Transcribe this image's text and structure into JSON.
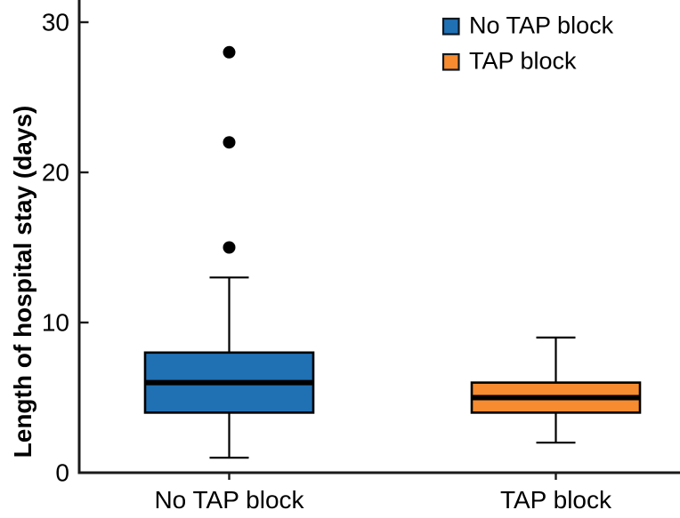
{
  "chart_data": {
    "type": "boxplot",
    "title": "",
    "xlabel": "",
    "ylabel": "Length of hospital stay (days)",
    "ylim": [
      0,
      31.5
    ],
    "yticks": [
      0,
      10,
      20,
      30
    ],
    "ytick_labels": [
      "0",
      "10",
      "20",
      "30"
    ],
    "categories": [
      "No TAP block",
      "TAP block"
    ],
    "grid": false,
    "legend": {
      "position": "top-right",
      "entries": [
        {
          "label": "No TAP block",
          "color": "#2070b4"
        },
        {
          "label": "TAP block",
          "color": "#f68b2f"
        }
      ]
    },
    "series": [
      {
        "name": "No TAP block",
        "color": "#2070b4",
        "whisker_low": 1,
        "q1": 4,
        "median": 6,
        "q3": 8,
        "whisker_high": 13,
        "outliers": [
          15,
          22,
          28
        ]
      },
      {
        "name": "TAP block",
        "color": "#f68b2f",
        "whisker_low": 2,
        "q1": 4,
        "median": 5,
        "q3": 6,
        "whisker_high": 9,
        "outliers": []
      }
    ],
    "style": {
      "box_border_color": "#000000",
      "median_color": "#000000",
      "whisker_color": "#000000",
      "outlier_color": "#000000",
      "axis_color": "#1a1a1a",
      "legend_swatch_border": "#101820",
      "background": "#ffffff"
    }
  }
}
